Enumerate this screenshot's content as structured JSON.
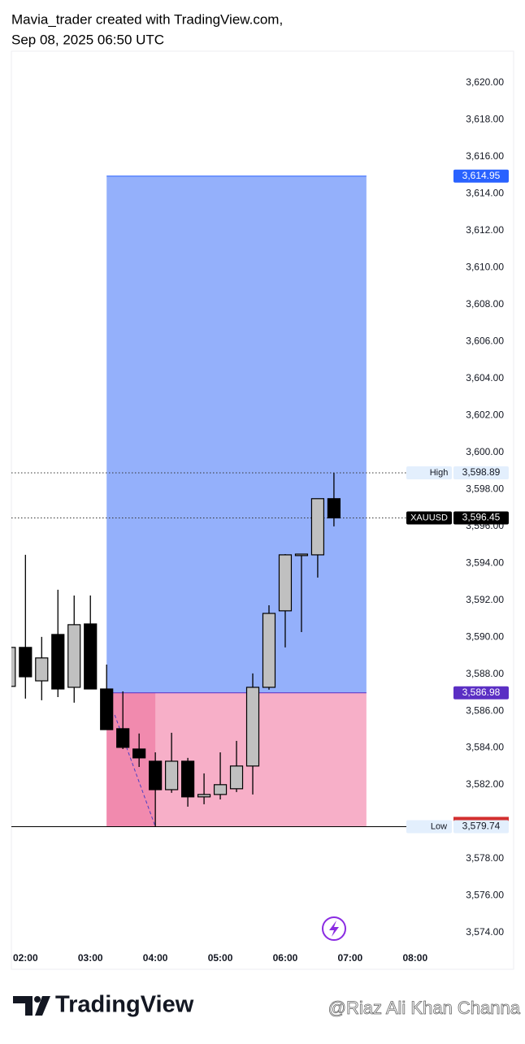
{
  "header": {
    "line1": "Mavia_trader created with TradingView.com,",
    "line2": "Sep 08, 2025 06:50 UTC"
  },
  "chart_data": {
    "type": "candlestick",
    "x": [
      "01:45",
      "02:00",
      "02:15",
      "02:30",
      "02:45",
      "03:00",
      "03:15",
      "03:30",
      "03:45",
      "04:00",
      "04:15",
      "04:30",
      "04:45",
      "05:00",
      "05:15",
      "05:30",
      "05:45",
      "06:00",
      "06:15",
      "06:30",
      "06:45"
    ],
    "open": [
      3587.33,
      3589.44,
      3587.63,
      3590.14,
      3587.28,
      3590.71,
      3587.19,
      3585.04,
      3583.94,
      3583.28,
      3581.74,
      3583.28,
      3581.35,
      3581.48,
      3581.79,
      3583.02,
      3587.28,
      3591.42,
      3594.41,
      3594.45,
      3597.49
    ],
    "high": [
      3589.5,
      3594.45,
      3590.01,
      3592.56,
      3592.25,
      3592.25,
      3588.51,
      3587.06,
      3584.78,
      3583.76,
      3584.82,
      3583.46,
      3582.62,
      3583.76,
      3584.38,
      3588.03,
      3591.72,
      3594.49,
      3594.49,
      3597.49,
      3598.89
    ],
    "low": [
      3587.3,
      3586.67,
      3586.58,
      3586.75,
      3586.45,
      3587.19,
      3584.99,
      3583.94,
      3582.97,
      3579.74,
      3581.57,
      3580.82,
      3580.95,
      3581.21,
      3581.61,
      3581.48,
      3587.15,
      3589.44,
      3590.27,
      3593.22,
      3595.99
    ],
    "close": [
      3589.44,
      3587.85,
      3588.87,
      3587.19,
      3590.67,
      3587.19,
      3584.99,
      3584.03,
      3583.46,
      3581.74,
      3583.28,
      3581.35,
      3581.48,
      3582.01,
      3583.02,
      3587.28,
      3591.28,
      3594.45,
      3594.49,
      3597.49,
      3596.45
    ],
    "up_color": "#c0c0c0",
    "down_color": "#000000",
    "xlim": [
      "01:47",
      "09:31"
    ],
    "xticks": [
      "02:00",
      "03:00",
      "04:00",
      "05:00",
      "06:00",
      "07:00",
      "08:00"
    ],
    "ylim": [
      3572.02,
      3621.71
    ],
    "yticks": [
      {
        "value": 3574,
        "label": "3,574.00"
      },
      {
        "value": 3576,
        "label": "3,576.00"
      },
      {
        "value": 3578,
        "label": "3,578.00"
      },
      {
        "value": 3582,
        "label": "3,582.00"
      },
      {
        "value": 3584,
        "label": "3,584.00"
      },
      {
        "value": 3586,
        "label": "3,586.00"
      },
      {
        "value": 3588,
        "label": "3,588.00"
      },
      {
        "value": 3590,
        "label": "3,590.00"
      },
      {
        "value": 3592,
        "label": "3,592.00"
      },
      {
        "value": 3594,
        "label": "3,594.00"
      },
      {
        "value": 3596,
        "label": "3,596.00"
      },
      {
        "value": 3598,
        "label": "3,598.00"
      },
      {
        "value": 3600,
        "label": "3,600.00"
      },
      {
        "value": 3602,
        "label": "3,602.00"
      },
      {
        "value": 3604,
        "label": "3,604.00"
      },
      {
        "value": 3606,
        "label": "3,606.00"
      },
      {
        "value": 3608,
        "label": "3,608.00"
      },
      {
        "value": 3610,
        "label": "3,610.00"
      },
      {
        "value": 3612,
        "label": "3,612.00"
      },
      {
        "value": 3614,
        "label": "3,614.00"
      },
      {
        "value": 3616,
        "label": "3,616.00"
      },
      {
        "value": 3618,
        "label": "3,618.00"
      },
      {
        "value": 3620,
        "label": "3,620.00"
      }
    ],
    "position": {
      "start": "03:15",
      "end": "07:15",
      "target_color": "#94b0fb",
      "stop_color": "#f7afc8",
      "target": {
        "value": 3614.95,
        "label": "3,614.95",
        "color": "#2962ff"
      },
      "entry": {
        "value": 3586.98,
        "label": "3,586.98",
        "color": "#5b2fc4"
      },
      "stop": 3579.74
    },
    "markers": [
      {
        "name": "High",
        "value": 3598.89,
        "label": "3,598.89"
      },
      {
        "name": "XAUUSD",
        "value": 3596.45,
        "label": "3,596.45"
      },
      {
        "name": "Low",
        "value": 3579.74,
        "label": "3,579.74"
      }
    ]
  },
  "footer": {
    "logo": "TradingView",
    "watermark": "@Riaz Ali Khan Channa"
  }
}
